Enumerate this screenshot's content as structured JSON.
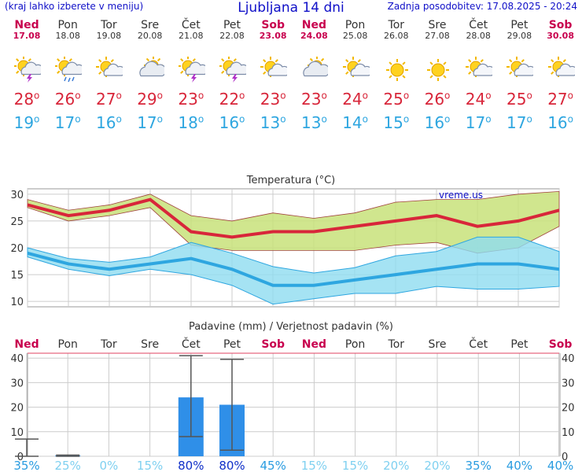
{
  "header": {
    "left_note": "(kraj lahko izberete v meniju)",
    "title": "Ljubljana 14 dni",
    "updated": "Zadnja posodobitev: 17.08.2025 - 20:24"
  },
  "days": [
    {
      "name": "Ned",
      "date": "17.08",
      "weekend": true,
      "icon": "sun-cloud-storm-icon",
      "tmax": "28",
      "tmin": "19"
    },
    {
      "name": "Pon",
      "date": "18.08",
      "weekend": false,
      "icon": "sun-cloud-rain-icon",
      "tmax": "26",
      "tmin": "17"
    },
    {
      "name": "Tor",
      "date": "19.08",
      "weekend": false,
      "icon": "sun-cloud-icon",
      "tmax": "27",
      "tmin": "16"
    },
    {
      "name": "Sre",
      "date": "20.08",
      "weekend": false,
      "icon": "cloud-sun-icon",
      "tmax": "29",
      "tmin": "17"
    },
    {
      "name": "Čet",
      "date": "21.08",
      "weekend": false,
      "icon": "sun-cloud-storm-icon",
      "tmax": "23",
      "tmin": "18"
    },
    {
      "name": "Pet",
      "date": "22.08",
      "weekend": false,
      "icon": "sun-cloud-storm-icon",
      "tmax": "22",
      "tmin": "16"
    },
    {
      "name": "Sob",
      "date": "23.08",
      "weekend": true,
      "icon": "sun-cloud-icon",
      "tmax": "23",
      "tmin": "13"
    },
    {
      "name": "Ned",
      "date": "24.08",
      "weekend": true,
      "icon": "cloud-sun-icon",
      "tmax": "23",
      "tmin": "13"
    },
    {
      "name": "Pon",
      "date": "25.08",
      "weekend": false,
      "icon": "sun-cloud-icon",
      "tmax": "24",
      "tmin": "14"
    },
    {
      "name": "Tor",
      "date": "26.08",
      "weekend": false,
      "icon": "sun-icon",
      "tmax": "25",
      "tmin": "15"
    },
    {
      "name": "Sre",
      "date": "27.08",
      "weekend": false,
      "icon": "sun-icon",
      "tmax": "26",
      "tmin": "16"
    },
    {
      "name": "Čet",
      "date": "28.08",
      "weekend": false,
      "icon": "sun-cloud-icon",
      "tmax": "24",
      "tmin": "17"
    },
    {
      "name": "Pet",
      "date": "29.08",
      "weekend": false,
      "icon": "sun-cloud-icon",
      "tmax": "25",
      "tmin": "17"
    },
    {
      "name": "Sob",
      "date": "30.08",
      "weekend": true,
      "icon": "sun-cloud-icon",
      "tmax": "27",
      "tmin": "16"
    }
  ],
  "colors": {
    "max_line": "#d8263a",
    "max_band": "#c8e27a",
    "min_line": "#2ea6e0",
    "min_band": "#8fdcf0",
    "weekend": "#c8004e",
    "bar": "#2f8fe8",
    "grid": "#cccccc"
  },
  "chart_data": [
    {
      "type": "line",
      "title": "Temperatura (°C)",
      "watermark": "vreme.us",
      "ylim": [
        9,
        31
      ],
      "yticks": [
        10,
        15,
        20,
        25,
        30
      ],
      "series": [
        {
          "values": [
            28,
            26,
            27,
            29,
            23,
            22,
            23,
            23,
            24,
            25,
            26,
            24,
            25,
            27
          ]
        },
        {
          "values": [
            19,
            17,
            16,
            17,
            18,
            16,
            13,
            13,
            14,
            15,
            16,
            17,
            17,
            16
          ]
        }
      ],
      "max_band_high": [
        29,
        27,
        28,
        30,
        26,
        25,
        26.5,
        25.5,
        26.5,
        28.5,
        29,
        29,
        30,
        30.5
      ],
      "max_band_low": [
        27.5,
        25,
        26,
        27.5,
        20.5,
        19.5,
        19.5,
        19.5,
        19.5,
        20.5,
        21,
        19,
        20,
        24
      ],
      "min_band_high": [
        20,
        18,
        17.3,
        18.3,
        21,
        19,
        16.5,
        15.3,
        16.3,
        18.5,
        19.3,
        22,
        22,
        19.3
      ],
      "min_band_low": [
        18.3,
        16,
        14.8,
        16,
        15,
        13,
        9.5,
        10.5,
        11.5,
        11.5,
        12.8,
        12.3,
        12.3,
        12.8
      ]
    },
    {
      "type": "bar",
      "title": "Padavine (mm) / Verjetnost padavin (%)",
      "ylim": [
        0,
        42
      ],
      "yticks": [
        0,
        10,
        20,
        30,
        40
      ],
      "categories": [
        "Ned",
        "Pon",
        "Tor",
        "Sre",
        "Čet",
        "Pet",
        "Sob",
        "Ned",
        "Pon",
        "Tor",
        "Sre",
        "Čet",
        "Pet",
        "Sob"
      ],
      "values": [
        0,
        0.3,
        0,
        0,
        24,
        21,
        0,
        0,
        0,
        0,
        0,
        0,
        0,
        0
      ],
      "range_low": [
        0,
        0,
        0,
        0,
        8,
        2.5,
        0,
        0,
        0,
        0,
        0,
        0,
        0,
        0
      ],
      "range_high": [
        7,
        0.5,
        0,
        0,
        41,
        39.5,
        0,
        0,
        0,
        0,
        0,
        0,
        0,
        0
      ],
      "probability": [
        "35%",
        "25%",
        "0%",
        "15%",
        "80%",
        "80%",
        "45%",
        "15%",
        "15%",
        "20%",
        "20%",
        "35%",
        "40%",
        "40%"
      ]
    }
  ]
}
